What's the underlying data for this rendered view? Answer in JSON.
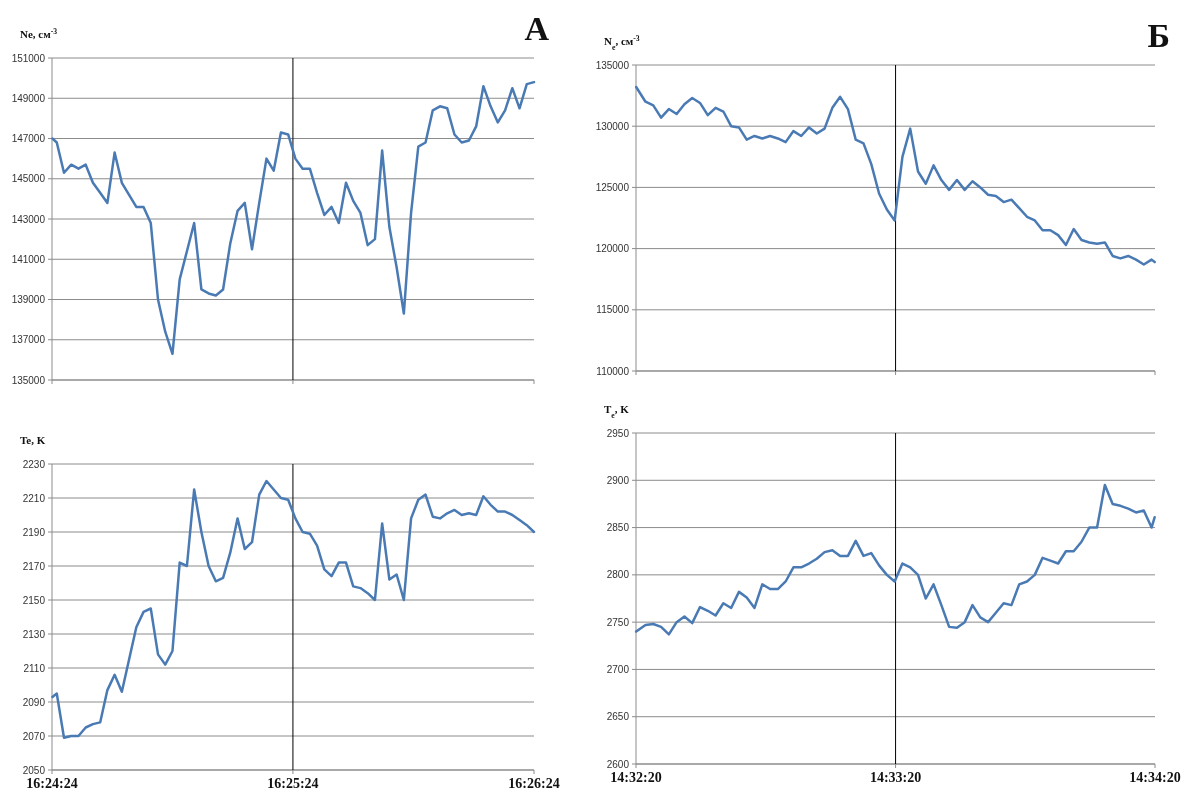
{
  "chart_data": [
    {
      "type": "line",
      "title": "А",
      "ylabel": "Ne, см$^{-3}$",
      "tick_labels": "y",
      "grid": "y",
      "marker": "none",
      "line_style": "solid",
      "x": [
        16.4067,
        16.407,
        16.4075,
        16.408,
        16.4085,
        16.409,
        16.4095,
        16.41,
        16.4105,
        16.411,
        16.4115,
        16.412,
        16.4125,
        16.413,
        16.4135,
        16.414,
        16.4145,
        16.415,
        16.4155,
        16.416,
        16.4165,
        16.417,
        16.4175,
        16.418,
        16.4185,
        16.419,
        16.4195,
        16.42,
        16.4205,
        16.421,
        16.4215,
        16.422,
        16.4225,
        16.423,
        16.4235,
        16.424,
        16.4245,
        16.425,
        16.4255,
        16.426,
        16.4265,
        16.427,
        16.4275,
        16.428,
        16.4285,
        16.429,
        16.4295,
        16.43,
        16.4305,
        16.431,
        16.4315,
        16.432,
        16.4325,
        16.433,
        16.4335,
        16.434,
        16.4345,
        16.435,
        16.4355,
        16.436,
        16.4365,
        16.437,
        16.4375,
        16.438,
        16.4385,
        16.439,
        16.4395,
        16.44
      ],
      "series": [
        {
          "color": "#4a7ab4",
          "values": [
            147000,
            146800,
            145300,
            145700,
            145500,
            145700,
            144800,
            144300,
            143800,
            146300,
            144800,
            144200,
            143600,
            143600,
            142800,
            139000,
            137400,
            136300,
            140000,
            141400,
            142800,
            139500,
            139300,
            139200,
            139500,
            141800,
            143400,
            143800,
            141500,
            143800,
            146000,
            145400,
            147300,
            147200,
            146000,
            145500,
            145500,
            144300,
            143200,
            143600,
            142800,
            144800,
            143900,
            143300,
            141700,
            142000,
            146400,
            142600,
            140600,
            138300,
            143300,
            146600,
            146800,
            148400,
            148600,
            148500,
            147200,
            146800,
            146900,
            147600,
            149600,
            148600,
            147800,
            148400,
            149500,
            148500,
            149700,
            149800
          ]
        }
      ],
      "xlim": [
        16.40667,
        16.44
      ],
      "xticks": [
        {
          "value": 16.40667,
          "label": null
        },
        {
          "value": 16.42333,
          "label": null
        },
        {
          "value": 16.44,
          "label": null
        }
      ],
      "ylim": [
        135000,
        151000
      ],
      "yticks": [
        135000,
        137000,
        139000,
        141000,
        143000,
        145000,
        147000,
        149000,
        151000
      ],
      "ref_lines": [
        {
          "axis": "x",
          "value": 16.42333,
          "color": "#000000"
        }
      ]
    },
    {
      "type": "line",
      "title": "Б",
      "ylabel": "N$_{e}$, см$^{-3}$",
      "tick_labels": "y",
      "grid": "y",
      "marker": "none",
      "line_style": "solid",
      "x": [
        14.5389,
        14.5395,
        14.54,
        14.5405,
        14.541,
        14.5415,
        14.542,
        14.5425,
        14.543,
        14.5435,
        14.544,
        14.5445,
        14.545,
        14.5455,
        14.546,
        14.5465,
        14.547,
        14.5475,
        14.548,
        14.5485,
        14.549,
        14.5495,
        14.55,
        14.5505,
        14.551,
        14.5515,
        14.552,
        14.5525,
        14.553,
        14.5535,
        14.554,
        14.5545,
        14.555,
        14.5555,
        14.556,
        14.5565,
        14.557,
        14.5575,
        14.558,
        14.5585,
        14.559,
        14.5595,
        14.56,
        14.5605,
        14.561,
        14.5615,
        14.562,
        14.5625,
        14.563,
        14.5635,
        14.564,
        14.5645,
        14.565,
        14.5655,
        14.566,
        14.5665,
        14.567,
        14.5675,
        14.568,
        14.5685,
        14.569,
        14.5695,
        14.57,
        14.5705,
        14.571,
        14.5715,
        14.572,
        14.5722
      ],
      "series": [
        {
          "color": "#4a7ab4",
          "values": [
            133200,
            132000,
            131700,
            130700,
            131400,
            131000,
            131800,
            132300,
            131900,
            130900,
            131500,
            131200,
            130000,
            129900,
            128900,
            129200,
            129000,
            129200,
            129000,
            128700,
            129600,
            129200,
            129900,
            129400,
            129800,
            131500,
            132400,
            131400,
            128900,
            128600,
            126900,
            124500,
            123200,
            122300,
            127500,
            129800,
            126300,
            125300,
            126800,
            125600,
            124800,
            125600,
            124800,
            125500,
            125000,
            124400,
            124300,
            123800,
            124000,
            123300,
            122600,
            122300,
            121500,
            121500,
            121100,
            120300,
            121600,
            120700,
            120500,
            120400,
            120500,
            119400,
            119200,
            119400,
            119100,
            118700,
            119100,
            118900
          ]
        }
      ],
      "xlim": [
        14.53889,
        14.57222
      ],
      "xticks": [
        {
          "value": 14.53889,
          "label": null
        },
        {
          "value": 14.55556,
          "label": null
        },
        {
          "value": 14.57222,
          "label": null
        }
      ],
      "ylim": [
        110000,
        135000
      ],
      "yticks": [
        110000,
        115000,
        120000,
        125000,
        130000,
        135000
      ],
      "ref_lines": [
        {
          "axis": "x",
          "value": 14.55556,
          "color": "#000000"
        }
      ]
    },
    {
      "type": "line",
      "ylabel": "Te, K",
      "grid": "y",
      "marker": "none",
      "line_style": "solid",
      "x": [
        16.4067,
        16.407,
        16.4075,
        16.408,
        16.4085,
        16.409,
        16.4095,
        16.41,
        16.4105,
        16.411,
        16.4115,
        16.412,
        16.4125,
        16.413,
        16.4135,
        16.414,
        16.4145,
        16.415,
        16.4155,
        16.416,
        16.4165,
        16.417,
        16.4175,
        16.418,
        16.4185,
        16.419,
        16.4195,
        16.42,
        16.4205,
        16.421,
        16.4215,
        16.422,
        16.4225,
        16.423,
        16.4235,
        16.424,
        16.4245,
        16.425,
        16.4255,
        16.426,
        16.4265,
        16.427,
        16.4275,
        16.428,
        16.4285,
        16.429,
        16.4295,
        16.43,
        16.4305,
        16.431,
        16.4315,
        16.432,
        16.4325,
        16.433,
        16.4335,
        16.434,
        16.4345,
        16.435,
        16.4355,
        16.436,
        16.4365,
        16.437,
        16.4375,
        16.438,
        16.4385,
        16.439,
        16.4395,
        16.44
      ],
      "series": [
        {
          "color": "#4a7ab4",
          "values": [
            2093,
            2095,
            2069,
            2070,
            2070,
            2075,
            2077,
            2078,
            2097,
            2106,
            2096,
            2115,
            2134,
            2143,
            2145,
            2118,
            2112,
            2120,
            2172,
            2170,
            2215,
            2190,
            2170,
            2161,
            2163,
            2178,
            2198,
            2180,
            2184,
            2212,
            2220,
            2215,
            2210,
            2209,
            2198,
            2190,
            2189,
            2182,
            2168,
            2164,
            2172,
            2172,
            2158,
            2157,
            2154,
            2150,
            2195,
            2162,
            2165,
            2150,
            2198,
            2209,
            2212,
            2199,
            2198,
            2201,
            2203,
            2200,
            2201,
            2200,
            2211,
            2206,
            2202,
            2202,
            2200,
            2197,
            2194,
            2190
          ]
        }
      ],
      "xlim": [
        16.40667,
        16.44
      ],
      "xticks": [
        {
          "value": 16.40667,
          "label": "16:24:24"
        },
        {
          "value": 16.42333,
          "label": "16:25:24"
        },
        {
          "value": 16.44,
          "label": "16:26:24"
        }
      ],
      "ylim": [
        2050,
        2230
      ],
      "yticks": [
        2050,
        2070,
        2090,
        2110,
        2130,
        2150,
        2170,
        2190,
        2210,
        2230
      ],
      "ref_lines": [
        {
          "axis": "x",
          "value": 16.42333,
          "color": "#000000"
        }
      ]
    },
    {
      "type": "line",
      "ylabel": "T$_{e}$, K",
      "grid": "y",
      "marker": "none",
      "line_style": "solid",
      "x": [
        14.5389,
        14.5395,
        14.54,
        14.5405,
        14.541,
        14.5415,
        14.542,
        14.5425,
        14.543,
        14.5435,
        14.544,
        14.5445,
        14.545,
        14.5455,
        14.546,
        14.5465,
        14.547,
        14.5475,
        14.548,
        14.5485,
        14.549,
        14.5495,
        14.55,
        14.5505,
        14.551,
        14.5515,
        14.552,
        14.5525,
        14.553,
        14.5535,
        14.554,
        14.5545,
        14.555,
        14.5555,
        14.556,
        14.5565,
        14.557,
        14.5575,
        14.558,
        14.5585,
        14.559,
        14.5595,
        14.56,
        14.5605,
        14.561,
        14.5615,
        14.562,
        14.5625,
        14.563,
        14.5635,
        14.564,
        14.5645,
        14.565,
        14.5655,
        14.566,
        14.5665,
        14.567,
        14.5675,
        14.568,
        14.5685,
        14.569,
        14.5695,
        14.57,
        14.5705,
        14.571,
        14.5715,
        14.572,
        14.5722
      ],
      "series": [
        {
          "color": "#4a7ab4",
          "values": [
            2740,
            2747,
            2748,
            2745,
            2737,
            2750,
            2756,
            2749,
            2766,
            2762,
            2757,
            2770,
            2765,
            2782,
            2776,
            2765,
            2790,
            2785,
            2785,
            2793,
            2808,
            2808,
            2812,
            2817,
            2824,
            2826,
            2820,
            2820,
            2836,
            2820,
            2823,
            2810,
            2800,
            2793,
            2812,
            2808,
            2800,
            2775,
            2790,
            2768,
            2745,
            2744,
            2750,
            2768,
            2755,
            2750,
            2760,
            2770,
            2768,
            2790,
            2793,
            2800,
            2818,
            2815,
            2812,
            2825,
            2825,
            2835,
            2850,
            2850,
            2895,
            2875,
            2873,
            2870,
            2866,
            2868,
            2850,
            2861
          ]
        }
      ],
      "xlim": [
        14.53889,
        14.57222
      ],
      "xticks": [
        {
          "value": 14.53889,
          "label": "14:32:20"
        },
        {
          "value": 14.55556,
          "label": "14:33:20"
        },
        {
          "value": 14.57222,
          "label": "14:34:20"
        }
      ],
      "ylim": [
        2600,
        2950
      ],
      "yticks": [
        2600,
        2650,
        2700,
        2750,
        2800,
        2850,
        2900,
        2950
      ],
      "ref_lines": [
        {
          "axis": "x",
          "value": 14.55556,
          "color": "#000000"
        }
      ]
    }
  ]
}
